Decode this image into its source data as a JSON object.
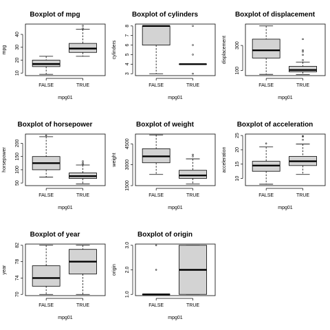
{
  "colors": {
    "box_fill": "#d3d3d3",
    "stroke": "#000000",
    "background": "#ffffff"
  },
  "chart_data": [
    {
      "type": "boxplot",
      "title": "Boxplot of mpg",
      "xlabel": "mpg01",
      "ylabel": "mpg",
      "categories": [
        "FALSE",
        "TRUE"
      ],
      "ylim": [
        8,
        48
      ],
      "yticks": [
        10,
        20,
        30,
        40
      ],
      "boxes": [
        {
          "low": 9,
          "q1": 15,
          "median": 17,
          "q3": 20,
          "high": 23,
          "outliers": []
        },
        {
          "low": 23,
          "q1": 26,
          "median": 29,
          "q3": 33,
          "high": 44,
          "outliers": [
            44.6,
            46.6
          ]
        }
      ]
    },
    {
      "type": "boxplot",
      "title": "Boxplot of cylinders",
      "xlabel": "mpg01",
      "ylabel": "cylinders",
      "categories": [
        "FALSE",
        "TRUE"
      ],
      "ylim": [
        2.8,
        8.2
      ],
      "yticks": [
        3,
        4,
        5,
        6,
        7,
        8
      ],
      "boxes": [
        {
          "low": 3,
          "q1": 6,
          "median": 8,
          "q3": 8,
          "high": 8,
          "outliers": []
        },
        {
          "low": 4,
          "q1": 4,
          "median": 4,
          "q3": 4,
          "high": 4,
          "outliers": [
            3,
            5,
            6,
            8
          ]
        }
      ]
    },
    {
      "type": "boxplot",
      "title": "Boxplot of displacement",
      "xlabel": "mpg01",
      "ylabel": "displacement",
      "categories": [
        "FALSE",
        "TRUE"
      ],
      "ylim": [
        60,
        470
      ],
      "yticks": [
        100,
        300
      ],
      "boxes": [
        {
          "low": 70,
          "q1": 200,
          "median": 261,
          "q3": 350,
          "high": 455,
          "outliers": []
        },
        {
          "low": 68,
          "q1": 90,
          "median": 105,
          "q3": 134,
          "high": 168,
          "outliers": [
            183,
            225,
            250,
            262,
            350
          ]
        }
      ]
    },
    {
      "type": "boxplot",
      "title": "Boxplot of horsepower",
      "xlabel": "mpg01",
      "ylabel": "horsepower",
      "categories": [
        "FALSE",
        "TRUE"
      ],
      "ylim": [
        40,
        235
      ],
      "yticks": [
        50,
        100,
        150,
        200
      ],
      "boxes": [
        {
          "low": 72,
          "q1": 100,
          "median": 125,
          "q3": 150,
          "high": 225,
          "outliers": [
            230
          ]
        },
        {
          "low": 46,
          "q1": 67,
          "median": 76,
          "q3": 88,
          "high": 118,
          "outliers": [
            120,
            125,
            132
          ]
        }
      ]
    },
    {
      "type": "boxplot",
      "title": "Boxplot of weight",
      "xlabel": "mpg01",
      "ylabel": "weight",
      "categories": [
        "FALSE",
        "TRUE"
      ],
      "ylim": [
        1500,
        5200
      ],
      "yticks": [
        1500,
        3000,
        4500
      ],
      "boxes": [
        {
          "low": 2300,
          "q1": 3140,
          "median": 3600,
          "q3": 4150,
          "high": 5140,
          "outliers": []
        },
        {
          "low": 1610,
          "q1": 2020,
          "median": 2230,
          "q3": 2600,
          "high": 3420,
          "outliers": [
            3600,
            3725
          ]
        }
      ]
    },
    {
      "type": "boxplot",
      "title": "Boxplot of acceleration",
      "xlabel": "mpg01",
      "ylabel": "acceleration",
      "categories": [
        "FALSE",
        "TRUE"
      ],
      "ylim": [
        7.5,
        25.5
      ],
      "yticks": [
        10,
        15,
        20,
        25
      ],
      "boxes": [
        {
          "low": 8,
          "q1": 12.5,
          "median": 14.5,
          "q3": 16,
          "high": 21,
          "outliers": [
            22.2
          ]
        },
        {
          "low": 11.4,
          "q1": 14.5,
          "median": 16,
          "q3": 17.7,
          "high": 22,
          "outliers": [
            23.5,
            24.6,
            24.8
          ]
        }
      ]
    },
    {
      "type": "boxplot",
      "title": "Boxplot of year",
      "xlabel": "mpg01",
      "ylabel": "year",
      "categories": [
        "FALSE",
        "TRUE"
      ],
      "ylim": [
        69.7,
        82.3
      ],
      "yticks": [
        70,
        74,
        78,
        82
      ],
      "boxes": [
        {
          "low": 70,
          "q1": 72,
          "median": 74,
          "q3": 77,
          "high": 82,
          "outliers": []
        },
        {
          "low": 70,
          "q1": 75,
          "median": 78,
          "q3": 81,
          "high": 82,
          "outliers": []
        }
      ]
    },
    {
      "type": "boxplot",
      "title": "Boxplot of origin",
      "xlabel": "mpg01",
      "ylabel": "origin",
      "categories": [
        "FALSE",
        "TRUE"
      ],
      "ylim": [
        0.95,
        3.05
      ],
      "yticks": [
        1.0,
        2.0,
        3.0
      ],
      "yticklabels": [
        "1.0",
        "2.0",
        "3.0"
      ],
      "boxes": [
        {
          "low": 1,
          "q1": 1,
          "median": 1,
          "q3": 1,
          "high": 1,
          "outliers": [
            2,
            3
          ]
        },
        {
          "low": 1,
          "q1": 1,
          "median": 2,
          "q3": 3,
          "high": 3,
          "outliers": []
        }
      ]
    }
  ]
}
